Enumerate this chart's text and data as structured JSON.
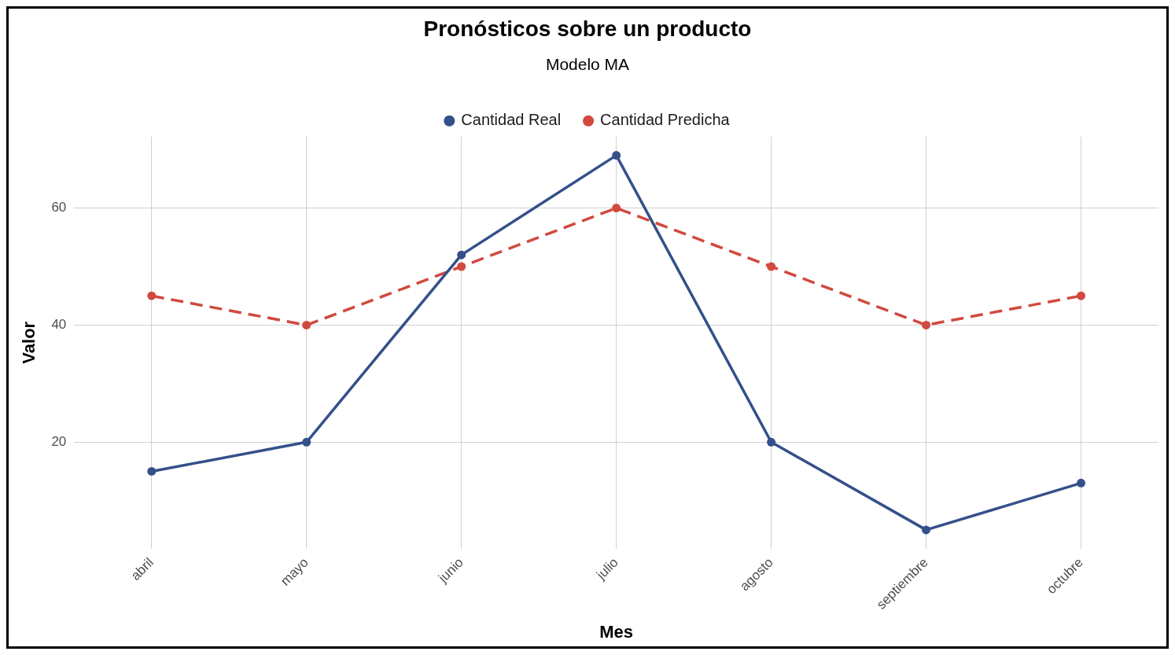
{
  "chart_data": {
    "type": "line",
    "title": "Pronósticos sobre un producto",
    "subtitle": "Modelo MA",
    "xlabel": "Mes",
    "ylabel": "Valor",
    "categories": [
      "abril",
      "mayo",
      "junio",
      "julio",
      "agosto",
      "septiembre",
      "octubre"
    ],
    "series": [
      {
        "name": "Cantidad Real",
        "color": "#34508a",
        "line_style": "solid",
        "values": [
          15,
          20,
          52,
          69,
          20,
          5,
          13
        ]
      },
      {
        "name": "Cantidad Predicha",
        "color": "#d1493f",
        "line_style": "dashed",
        "values": [
          45,
          40,
          50,
          60,
          50,
          40,
          45
        ]
      }
    ],
    "ylim": [
      1.8,
      72.2
    ],
    "yticks": [
      20,
      40,
      60
    ],
    "grid": true,
    "legend": "top",
    "marker": "circle"
  }
}
